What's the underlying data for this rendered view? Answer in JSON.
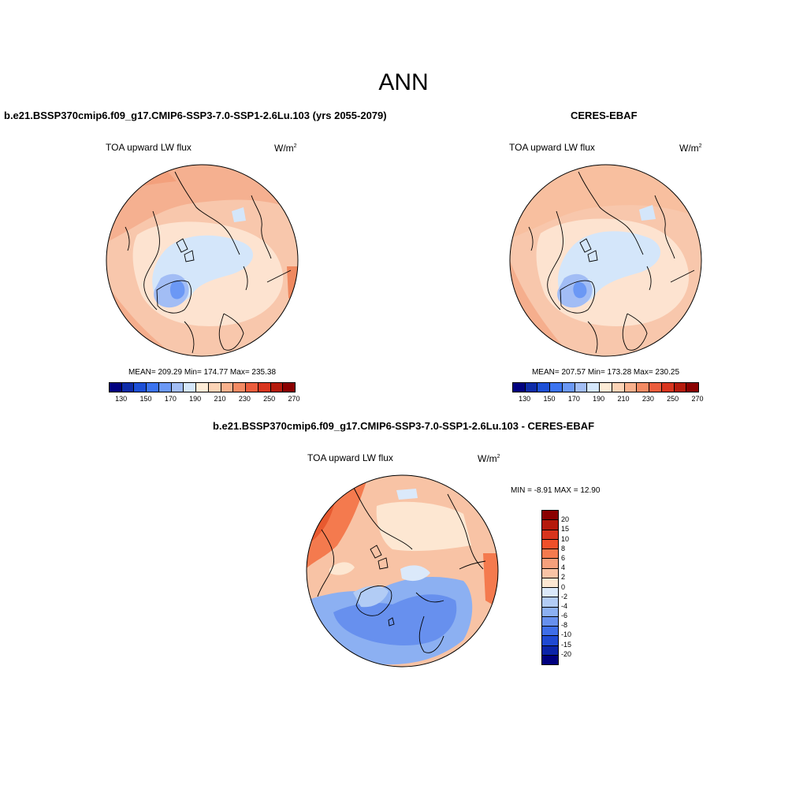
{
  "main_title": "ANN",
  "units": "W/m",
  "units_sup": "2",
  "variable": "TOA upward LW flux",
  "panels": {
    "model": {
      "title": "b.e21.BSSP370cmip6.f09_g17.CMIP6-SSP3-7.0-SSP1-2.6Lu.103 (yrs 2055-2079)",
      "stats": "MEAN= 209.29  Min= 174.77  Max= 235.38"
    },
    "obs": {
      "title": "CERES-EBAF",
      "stats": "MEAN= 207.57  Min= 173.28  Max= 230.25"
    },
    "diff": {
      "title": "b.e21.BSSP370cmip6.f09_g17.CMIP6-SSP3-7.0-SSP1-2.6Lu.103 - CERES-EBAF",
      "stats": "MIN =  -8.91 MAX =  12.90"
    }
  },
  "abs_colorbar": {
    "colors": [
      "#00007f",
      "#0d2ba8",
      "#1c4fd6",
      "#3b73f0",
      "#6b98f5",
      "#a2bdf5",
      "#d4e6fa",
      "#fdebd6",
      "#fbd3b6",
      "#f8b08c",
      "#f38a63",
      "#eb5c3c",
      "#d8341d",
      "#b51a0c",
      "#8a0000"
    ],
    "tick_labels": [
      "130",
      "150",
      "170",
      "190",
      "210",
      "230",
      "250",
      "270"
    ]
  },
  "diff_colorbar": {
    "colors": [
      "#8a0000",
      "#b51a0c",
      "#d8341d",
      "#f0502a",
      "#f47a4e",
      "#f5a07c",
      "#f8c3a5",
      "#fde7d2",
      "#dbe9fa",
      "#b2ccf5",
      "#8cb0f2",
      "#6790ee",
      "#3f6ee8",
      "#1f49d2",
      "#0b24a8",
      "#00007f"
    ],
    "tick_labels": [
      "20",
      "15",
      "10",
      "8",
      "6",
      "4",
      "2",
      "0",
      "-2",
      "-4",
      "-6",
      "-8",
      "-10",
      "-15",
      "-20"
    ]
  }
}
